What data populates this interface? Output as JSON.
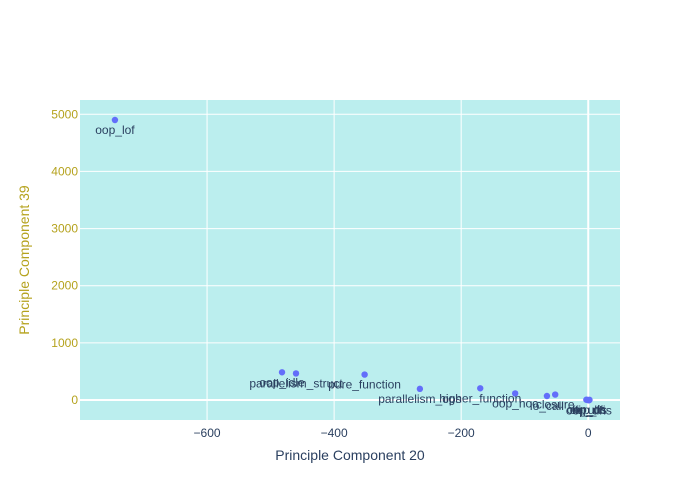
{
  "chart_data": {
    "type": "scatter",
    "xlabel": "Principle Component 20",
    "ylabel": "Principle Component 39",
    "xlim": [
      -800,
      50
    ],
    "ylim": [
      -350,
      5250
    ],
    "x_ticks": [
      -600,
      -400,
      -200,
      0
    ],
    "x_tick_labels": [
      "−600",
      "−400",
      "−200",
      "0"
    ],
    "y_ticks": [
      0,
      1000,
      2000,
      3000,
      4000,
      5000
    ],
    "y_tick_labels": [
      "0",
      "1000",
      "2000",
      "3000",
      "4000",
      "5000"
    ],
    "grid": true,
    "colors": {
      "plot_bg": "#bbeeee",
      "marker": "#636efa",
      "x_axis_text": "#2a3f5f",
      "y_axis_text": "#b5a21d",
      "label_text": "#2a3f5f"
    },
    "points": [
      {
        "x": -745,
        "y": 4900,
        "label": "oop_lof"
      },
      {
        "x": -482,
        "y": 485,
        "label": "oop_idle"
      },
      {
        "x": -460,
        "y": 465,
        "label": "parallelism_struct"
      },
      {
        "x": -352,
        "y": 445,
        "label": "pure_function"
      },
      {
        "x": -265,
        "y": 195,
        "label": "parallelism_ops"
      },
      {
        "x": -170,
        "y": 205,
        "label": "higher_function"
      },
      {
        "x": -115,
        "y": 115,
        "label": "oop_hoc"
      },
      {
        "x": -65,
        "y": 70,
        "label": "io_call"
      },
      {
        "x": -52,
        "y": 95,
        "label": "closure"
      },
      {
        "x": -3,
        "y": 5,
        "label": "oop_ds"
      },
      {
        "x": -1,
        "y": 0,
        "label": "oop_ffi"
      },
      {
        "x": 1,
        "y": -5,
        "label": "oop_uhs"
      },
      {
        "x": 2,
        "y": 2,
        "label": "ffi_uhs"
      }
    ]
  }
}
